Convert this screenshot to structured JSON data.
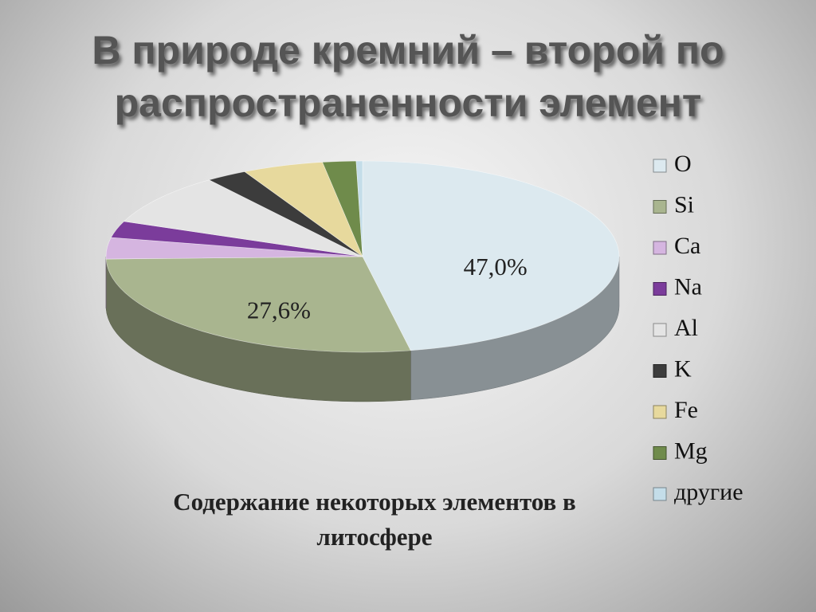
{
  "chart_data": {
    "type": "pie",
    "title": "В природе кремний – второй по распространенности элемент",
    "caption": "Содержание некоторых элементов в литосфере",
    "categories": [
      "O",
      "Si",
      "Ca",
      "Na",
      "Al",
      "K",
      "Fe",
      "Mg",
      "другие"
    ],
    "values": [
      47.0,
      27.6,
      3.6,
      2.8,
      8.8,
      2.6,
      5.1,
      2.1,
      0.4
    ],
    "value_labels": [
      "47,0%",
      "27,6%",
      null,
      null,
      null,
      null,
      null,
      null,
      null
    ],
    "colors": [
      "#dce9ef",
      "#a9b58f",
      "#d5b5e0",
      "#7b3c9b",
      "#e4e4e4",
      "#3c3c3c",
      "#e7d99d",
      "#6f8b4b",
      "#c4dde9"
    ]
  }
}
